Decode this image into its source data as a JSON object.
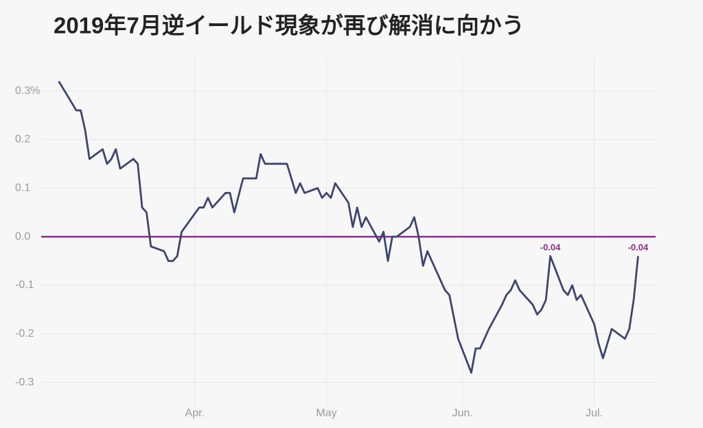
{
  "chart_data": {
    "type": "line",
    "title": "2019年7月逆イールド現象が再び解消に向かう",
    "x": [
      59,
      63,
      64,
      65,
      66,
      69,
      70,
      71,
      72,
      73,
      76,
      77,
      78,
      79,
      80,
      83,
      84,
      85,
      86,
      87,
      91,
      92,
      93,
      94,
      97,
      98,
      99,
      101,
      104,
      105,
      106,
      111,
      113,
      114,
      115,
      118,
      119,
      120,
      121,
      122,
      125,
      126,
      127,
      128,
      129,
      132,
      133,
      134,
      135,
      136,
      139,
      140,
      141,
      142,
      143,
      147,
      148,
      150,
      153,
      154,
      155,
      157,
      160,
      161,
      162,
      163,
      164,
      167,
      168,
      169,
      170,
      171,
      174,
      175,
      176,
      177,
      178,
      181,
      182,
      183,
      185,
      188,
      189,
      190,
      191
    ],
    "values": [
      0.32,
      0.26,
      0.26,
      0.22,
      0.16,
      0.18,
      0.15,
      0.16,
      0.18,
      0.14,
      0.16,
      0.15,
      0.06,
      0.05,
      -0.02,
      -0.03,
      -0.05,
      -0.05,
      -0.04,
      0.01,
      0.06,
      0.06,
      0.08,
      0.06,
      0.09,
      0.09,
      0.05,
      0.12,
      0.12,
      0.17,
      0.15,
      0.15,
      0.09,
      0.11,
      0.09,
      0.1,
      0.08,
      0.09,
      0.08,
      0.11,
      0.07,
      0.02,
      0.06,
      0.02,
      0.04,
      -0.01,
      0.01,
      -0.05,
      0.0,
      0.0,
      0.02,
      0.04,
      0.0,
      -0.06,
      -0.03,
      -0.11,
      -0.12,
      -0.21,
      -0.28,
      -0.23,
      -0.23,
      -0.19,
      -0.14,
      -0.12,
      -0.11,
      -0.09,
      -0.11,
      -0.14,
      -0.16,
      -0.15,
      -0.13,
      -0.04,
      -0.11,
      -0.12,
      -0.1,
      -0.13,
      -0.12,
      -0.18,
      -0.22,
      -0.25,
      -0.19,
      -0.21,
      -0.19,
      -0.13,
      -0.04
    ],
    "color": "#3e4470",
    "reference_line": {
      "y": 0,
      "color": "#8b2b8e"
    },
    "annotations": [
      {
        "x": 171,
        "y": -0.04,
        "text": "-0.04"
      },
      {
        "x": 191,
        "y": -0.04,
        "text": "-0.04"
      }
    ],
    "xlim": [
      55,
      195
    ],
    "xticks": [
      {
        "value": 90,
        "label": "Apr."
      },
      {
        "value": 120,
        "label": "May"
      },
      {
        "value": 151,
        "label": "Jun."
      },
      {
        "value": 181,
        "label": "Jul."
      }
    ],
    "ylim": [
      -0.35,
      0.37
    ],
    "yticks": [
      {
        "value": 0.3,
        "label": "0.3%"
      },
      0.2,
      0.1,
      {
        "value": 0,
        "label": "0.0"
      },
      -0.1,
      -0.2,
      -0.3
    ],
    "grid": true
  }
}
